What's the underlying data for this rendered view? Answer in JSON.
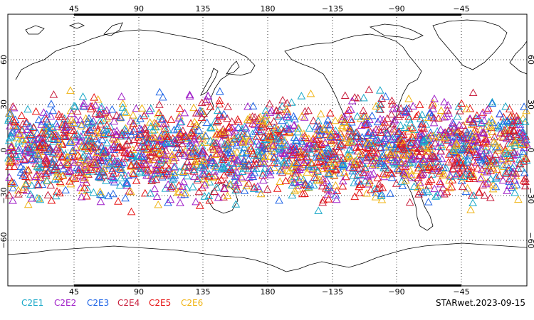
{
  "map": {
    "top_lon_labels": [
      "45",
      "90",
      "135",
      "180",
      "−135",
      "−90",
      "−45"
    ],
    "bottom_lon_labels": [
      "45",
      "90",
      "135",
      "180",
      "−135",
      "−90",
      "−45"
    ],
    "left_lat_labels": [
      "60",
      "30",
      "0",
      "−30",
      "−60"
    ],
    "right_lat_labels": [
      "60",
      "30",
      "0",
      "−30",
      "−60"
    ],
    "grid": true,
    "symbol": "open-triangle",
    "stamp": "STARwet.2023-09-15"
  },
  "legend": [
    {
      "label": "C2E1",
      "color": "#19a8c8"
    },
    {
      "label": "C2E2",
      "color": "#a020c8"
    },
    {
      "label": "C2E3",
      "color": "#1e64e6"
    },
    {
      "label": "C2E4",
      "color": "#c81e3c"
    },
    {
      "label": "C2E5",
      "color": "#e61414"
    },
    {
      "label": "C2E6",
      "color": "#f0b414"
    }
  ],
  "chart_data": {
    "type": "scatter",
    "projection": "cylindrical-equidistant",
    "lon_range": [
      20,
      380
    ],
    "lat_range": [
      -90,
      90
    ],
    "observation_band_lat": [
      -45,
      45
    ],
    "series": [
      {
        "name": "C2E1",
        "color": "#19a8c8"
      },
      {
        "name": "C2E2",
        "color": "#a020c8"
      },
      {
        "name": "C2E3",
        "color": "#1e64e6"
      },
      {
        "name": "C2E4",
        "color": "#c81e3c"
      },
      {
        "name": "C2E5",
        "color": "#e61414"
      },
      {
        "name": "C2E6",
        "color": "#f0b414"
      }
    ]
  }
}
